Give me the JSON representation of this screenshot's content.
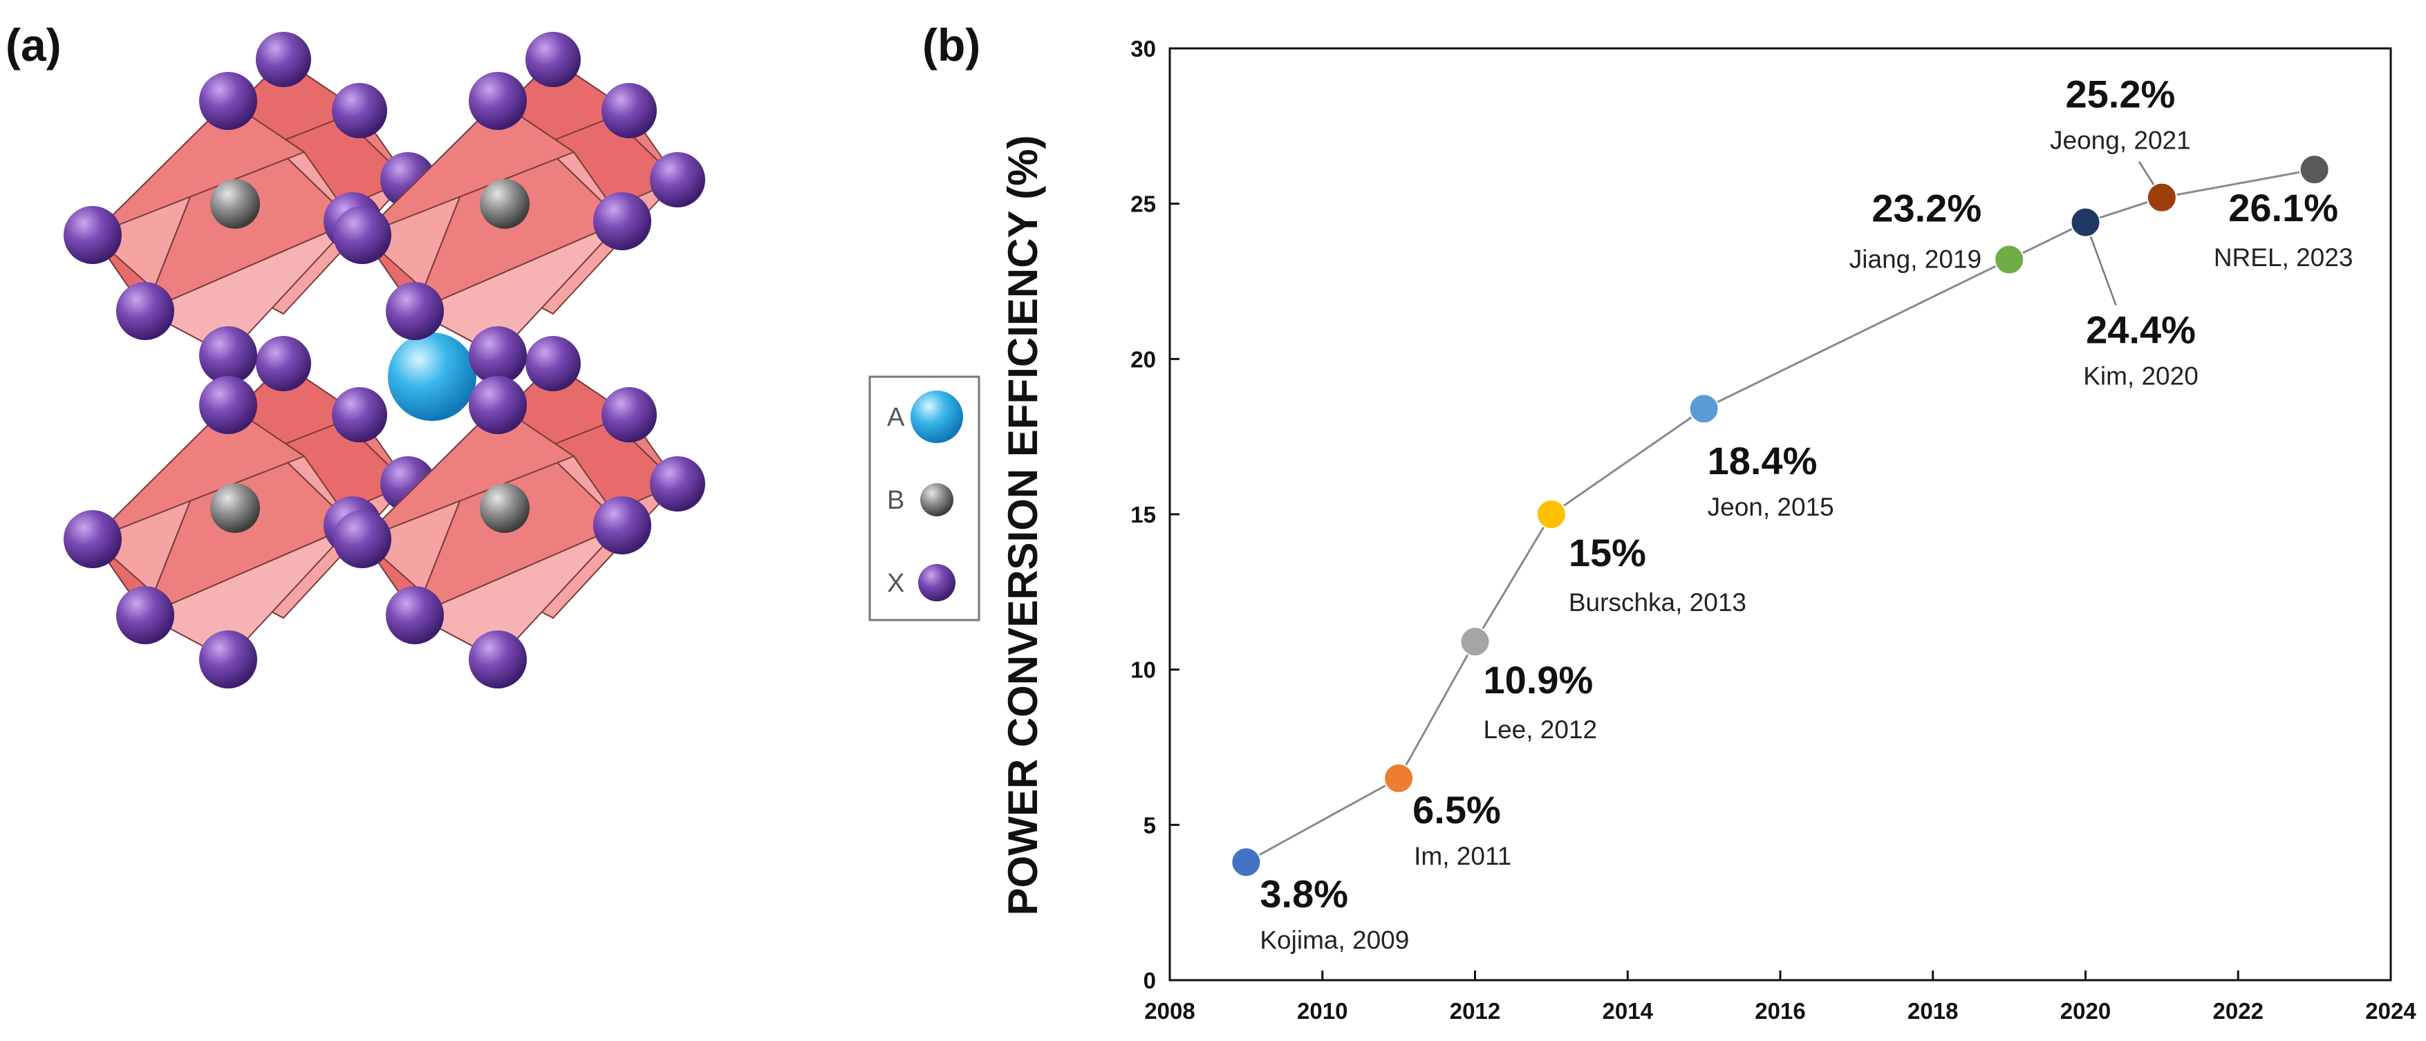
{
  "panel_a": {
    "label": "(a)",
    "legend": [
      {
        "key": "A",
        "color": "#29aee6"
      },
      {
        "key": "B",
        "color": "#707070"
      },
      {
        "key": "X",
        "color": "#6a3ea1"
      }
    ],
    "octahedron_color": "#f08a8a"
  },
  "chart_data": {
    "type": "scatter",
    "panel_label": "(b)",
    "title": "",
    "xlabel": "",
    "ylabel": "POWER CONVERSION EFFICIENCY (%)",
    "xlim": [
      2008,
      2024
    ],
    "ylim": [
      0,
      30
    ],
    "xticks": [
      2008,
      2010,
      2012,
      2014,
      2016,
      2018,
      2020,
      2022,
      2024
    ],
    "yticks": [
      0,
      5,
      10,
      15,
      20,
      25,
      30
    ],
    "grid": false,
    "connected": true,
    "points": [
      {
        "year": 2009,
        "pce": 3.8,
        "label": "3.8%",
        "author": "Kojima, 2009",
        "color": "#4472c4"
      },
      {
        "year": 2011,
        "pce": 6.5,
        "label": "6.5%",
        "author": "Im, 2011",
        "color": "#ed7d31"
      },
      {
        "year": 2012,
        "pce": 10.9,
        "label": "10.9%",
        "author": "Lee, 2012",
        "color": "#a5a5a5"
      },
      {
        "year": 2013,
        "pce": 15,
        "label": "15%",
        "author": "Burschka, 2013",
        "color": "#ffc000"
      },
      {
        "year": 2015,
        "pce": 18.4,
        "label": "18.4%",
        "author": "Jeon, 2015",
        "color": "#5b9bd5"
      },
      {
        "year": 2019,
        "pce": 23.2,
        "label": "23.2%",
        "author": "Jiang, 2019",
        "color": "#70ad47"
      },
      {
        "year": 2020,
        "pce": 24.4,
        "label": "24.4%",
        "author": "Kim, 2020",
        "color": "#1f3864"
      },
      {
        "year": 2021,
        "pce": 25.2,
        "label": "25.2%",
        "author": "Jeong, 2021",
        "color": "#9c3f0a"
      },
      {
        "year": 2023,
        "pce": 26.1,
        "label": "26.1%",
        "author": "NREL, 2023",
        "color": "#595959"
      }
    ]
  }
}
